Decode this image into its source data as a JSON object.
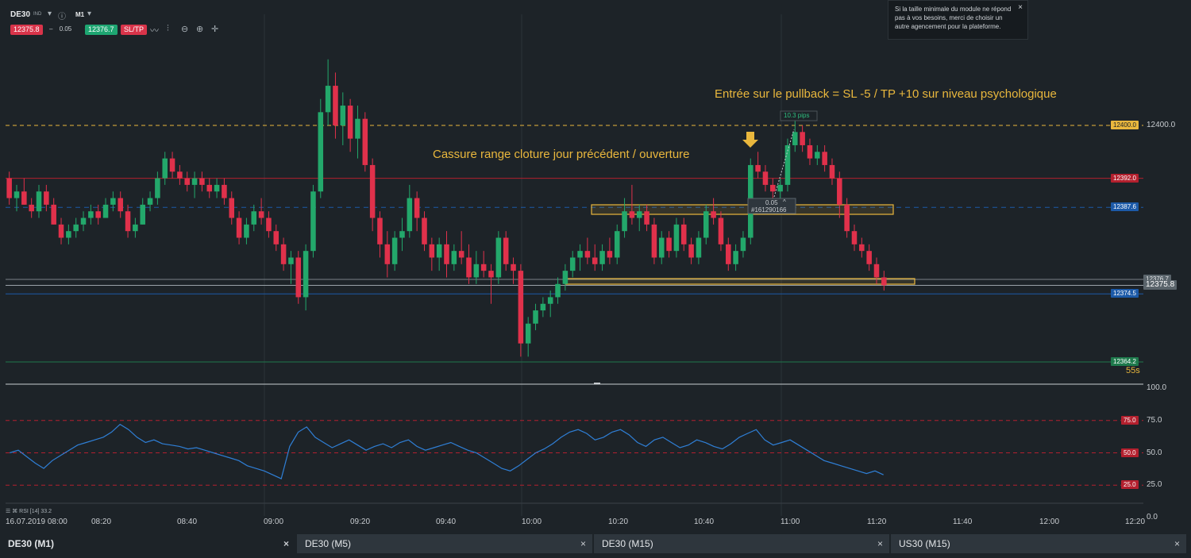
{
  "toolbar": {
    "symbol": "DE30",
    "instrument_badge": "IND",
    "info_icon": "info-icon",
    "timeframe": "M1",
    "sell_price": "12375.8",
    "volume": "0.05",
    "minus": "–",
    "plus": "+",
    "buy_price": "12376.7",
    "sltp_label": "SL/TP",
    "tools": [
      "line-chart-icon",
      "candles-icon",
      "zoom-out-icon",
      "zoom-in-icon",
      "crosshair-icon"
    ]
  },
  "notice": {
    "text": "Si la taille minimale du module ne répond pas à vos besoins, merci de choisir un autre agencement pour la plateforme.",
    "close": "×"
  },
  "annotations": {
    "entry": "Entrée sur le pullback = SL -5 / TP +10 sur niveau psychologique",
    "breakout": "Cassure range cloture jour précédent / ouverture",
    "pips": "10.3 pips",
    "order_volume": "0.05",
    "order_id": "#161290166"
  },
  "price_axis": {
    "top_value": "12400.0",
    "bid_value": "12375.8",
    "ask_value": "12376.7",
    "countdown": "55s",
    "tags": [
      {
        "value": "12400.0",
        "color": "#e9b73d",
        "text_color": "#1d2328",
        "y": 12400.0
      },
      {
        "value": "12392.0",
        "color": "#b3202e",
        "text_color": "#ffffff",
        "y": 12392.0
      },
      {
        "value": "12387.6",
        "color": "#1c5aa8",
        "text_color": "#ffffff",
        "y": 12387.6
      },
      {
        "value": "12374.5",
        "color": "#1c5aa8",
        "text_color": "#ffffff",
        "y": 12374.5
      },
      {
        "value": "12364.2",
        "color": "#1e7a4c",
        "text_color": "#ffffff",
        "y": 12364.2
      }
    ]
  },
  "rsi": {
    "label": "RSI [14] 33.2",
    "levels": [
      "100.0",
      "75.0",
      "50.0",
      "25.0",
      "0.0"
    ],
    "tags": [
      "75.0",
      "50.0",
      "25.0"
    ]
  },
  "time_axis": {
    "labels": [
      "16.07.2019 08:00",
      "08:20",
      "08:40",
      "09:00",
      "09:20",
      "09:40",
      "10:00",
      "10:20",
      "10:40",
      "11:00",
      "11:20",
      "11:40",
      "12:00",
      "12:20"
    ]
  },
  "tabs": [
    {
      "label": "DE30 (M1)",
      "close": "×"
    },
    {
      "label": "DE30 (M5)",
      "close": "×"
    },
    {
      "label": "DE30 (M15)",
      "close": "×"
    },
    {
      "label": "US30 (M15)",
      "close": "×"
    }
  ],
  "colors": {
    "up": "#23a86b",
    "down": "#e0314b",
    "rsi": "#2f7fd6",
    "zone": "#e9b73d"
  },
  "chart_data": {
    "type": "candlestick",
    "title": "DE30 M1",
    "xlabel": "",
    "ylabel": "",
    "ylim": [
      12360,
      12413
    ],
    "candles": [
      [
        12392,
        12393,
        12388,
        12389
      ],
      [
        12389,
        12391,
        12387,
        12390
      ],
      [
        12390,
        12392,
        12388,
        12388
      ],
      [
        12388,
        12389,
        12386,
        12387
      ],
      [
        12387,
        12391,
        12386,
        12390
      ],
      [
        12390,
        12391,
        12387,
        12388
      ],
      [
        12388,
        12389,
        12385,
        12385
      ],
      [
        12385,
        12386,
        12382,
        12383
      ],
      [
        12383,
        12385,
        12382,
        12384
      ],
      [
        12384,
        12386,
        12383,
        12385
      ],
      [
        12385,
        12387,
        12384,
        12386
      ],
      [
        12386,
        12388,
        12385,
        12387
      ],
      [
        12387,
        12388,
        12385,
        12386
      ],
      [
        12386,
        12389,
        12386,
        12388
      ],
      [
        12388,
        12390,
        12387,
        12389
      ],
      [
        12389,
        12390,
        12386,
        12387
      ],
      [
        12387,
        12388,
        12383,
        12384
      ],
      [
        12384,
        12386,
        12383,
        12385
      ],
      [
        12385,
        12389,
        12385,
        12388
      ],
      [
        12388,
        12390,
        12387,
        12389
      ],
      [
        12389,
        12393,
        12388,
        12392
      ],
      [
        12392,
        12396,
        12391,
        12395
      ],
      [
        12395,
        12396,
        12392,
        12393
      ],
      [
        12393,
        12394,
        12391,
        12392
      ],
      [
        12392,
        12393,
        12390,
        12391
      ],
      [
        12391,
        12393,
        12389,
        12392
      ],
      [
        12392,
        12393,
        12390,
        12391
      ],
      [
        12391,
        12392,
        12389,
        12390
      ],
      [
        12390,
        12392,
        12389,
        12391
      ],
      [
        12391,
        12392,
        12388,
        12389
      ],
      [
        12389,
        12390,
        12385,
        12386
      ],
      [
        12386,
        12387,
        12382,
        12383
      ],
      [
        12383,
        12386,
        12382,
        12385
      ],
      [
        12385,
        12388,
        12384,
        12387
      ],
      [
        12387,
        12389,
        12385,
        12386
      ],
      [
        12386,
        12387,
        12383,
        12384
      ],
      [
        12384,
        12385,
        12381,
        12382
      ],
      [
        12382,
        12383,
        12378,
        12379
      ],
      [
        12379,
        12381,
        12376,
        12380
      ],
      [
        12380,
        12381,
        12373,
        12374
      ],
      [
        12374,
        12382,
        12372,
        12381
      ],
      [
        12381,
        12391,
        12380,
        12390
      ],
      [
        12390,
        12404,
        12389,
        12402
      ],
      [
        12402,
        12410,
        12400,
        12406
      ],
      [
        12406,
        12408,
        12398,
        12400
      ],
      [
        12400,
        12405,
        12397,
        12403
      ],
      [
        12403,
        12404,
        12396,
        12398
      ],
      [
        12398,
        12403,
        12395,
        12401
      ],
      [
        12401,
        12402,
        12393,
        12394
      ],
      [
        12394,
        12395,
        12384,
        12386
      ],
      [
        12386,
        12387,
        12380,
        12382
      ],
      [
        12382,
        12384,
        12377,
        12379
      ],
      [
        12379,
        12384,
        12378,
        12383
      ],
      [
        12383,
        12386,
        12381,
        12384
      ],
      [
        12384,
        12391,
        12383,
        12389
      ],
      [
        12389,
        12390,
        12384,
        12386
      ],
      [
        12386,
        12387,
        12381,
        12382
      ],
      [
        12382,
        12383,
        12378,
        12380
      ],
      [
        12380,
        12383,
        12378,
        12382
      ],
      [
        12382,
        12384,
        12377,
        12379
      ],
      [
        12379,
        12382,
        12378,
        12381
      ],
      [
        12381,
        12384,
        12379,
        12380
      ],
      [
        12380,
        12382,
        12376,
        12377
      ],
      [
        12377,
        12381,
        12376,
        12379
      ],
      [
        12379,
        12381,
        12377,
        12378
      ],
      [
        12378,
        12379,
        12373,
        12377
      ],
      [
        12377,
        12384,
        12376,
        12383
      ],
      [
        12383,
        12384,
        12378,
        12379
      ],
      [
        12379,
        12380,
        12376,
        12378
      ],
      [
        12378,
        12379,
        12365,
        12367
      ],
      [
        12367,
        12371,
        12365,
        12370
      ],
      [
        12370,
        12373,
        12369,
        12372
      ],
      [
        12372,
        12374,
        12371,
        12373
      ],
      [
        12373,
        12375,
        12371,
        12374
      ],
      [
        12374,
        12377,
        12373,
        12376
      ],
      [
        12376,
        12379,
        12375,
        12378
      ],
      [
        12378,
        12381,
        12377,
        12380
      ],
      [
        12380,
        12382,
        12378,
        12381
      ],
      [
        12381,
        12383,
        12379,
        12380
      ],
      [
        12380,
        12382,
        12378,
        12379
      ],
      [
        12379,
        12382,
        12378,
        12381
      ],
      [
        12381,
        12383,
        12379,
        12380
      ],
      [
        12380,
        12385,
        12379,
        12384
      ],
      [
        12384,
        12389,
        12383,
        12387
      ],
      [
        12387,
        12391,
        12385,
        12386
      ],
      [
        12386,
        12388,
        12384,
        12387
      ],
      [
        12387,
        12388,
        12384,
        12385
      ],
      [
        12385,
        12386,
        12379,
        12380
      ],
      [
        12380,
        12384,
        12379,
        12383
      ],
      [
        12383,
        12384,
        12380,
        12381
      ],
      [
        12381,
        12386,
        12380,
        12385
      ],
      [
        12385,
        12386,
        12381,
        12382
      ],
      [
        12382,
        12383,
        12379,
        12380
      ],
      [
        12380,
        12384,
        12379,
        12383
      ],
      [
        12383,
        12388,
        12382,
        12387
      ],
      [
        12387,
        12389,
        12385,
        12386
      ],
      [
        12386,
        12387,
        12381,
        12382
      ],
      [
        12382,
        12383,
        12378,
        12379
      ],
      [
        12379,
        12382,
        12378,
        12381
      ],
      [
        12381,
        12384,
        12380,
        12383
      ],
      [
        12383,
        12395,
        12382,
        12394
      ],
      [
        12394,
        12396,
        12392,
        12393
      ],
      [
        12393,
        12394,
        12390,
        12391
      ],
      [
        12391,
        12392,
        12389,
        12390
      ],
      [
        12390,
        12392,
        12389,
        12391
      ],
      [
        12391,
        12398,
        12390,
        12397
      ],
      [
        12397,
        12401,
        12396,
        12399
      ],
      [
        12399,
        12400,
        12396,
        12397
      ],
      [
        12397,
        12398,
        12394,
        12395
      ],
      [
        12395,
        12397,
        12394,
        12396
      ],
      [
        12396,
        12397,
        12393,
        12394
      ],
      [
        12394,
        12395,
        12391,
        12392
      ],
      [
        12392,
        12393,
        12386,
        12388
      ],
      [
        12388,
        12389,
        12383,
        12384
      ],
      [
        12384,
        12385,
        12381,
        12382
      ],
      [
        12382,
        12383,
        12380,
        12381
      ],
      [
        12381,
        12382,
        12378,
        12379
      ],
      [
        12379,
        12380,
        12376,
        12377
      ],
      [
        12377,
        12378,
        12375,
        12375.8
      ]
    ],
    "rsi_values": [
      50,
      52,
      47,
      42,
      38,
      44,
      48,
      52,
      56,
      58,
      60,
      62,
      66,
      72,
      68,
      62,
      58,
      60,
      57,
      56,
      55,
      53,
      54,
      52,
      50,
      48,
      46,
      44,
      40,
      38,
      36,
      33,
      30,
      55,
      66,
      70,
      62,
      58,
      54,
      57,
      60,
      56,
      52,
      55,
      57,
      54,
      58,
      60,
      55,
      52,
      54,
      56,
      58,
      55,
      52,
      50,
      46,
      42,
      38,
      36,
      40,
      45,
      50,
      53,
      57,
      62,
      66,
      68,
      65,
      60,
      62,
      66,
      68,
      64,
      58,
      55,
      60,
      62,
      58,
      54,
      56,
      60,
      58,
      55,
      53,
      57,
      62,
      65,
      68,
      60,
      56,
      58,
      60,
      56,
      52,
      48,
      44,
      42,
      40,
      38,
      36,
      34,
      36,
      33
    ]
  }
}
